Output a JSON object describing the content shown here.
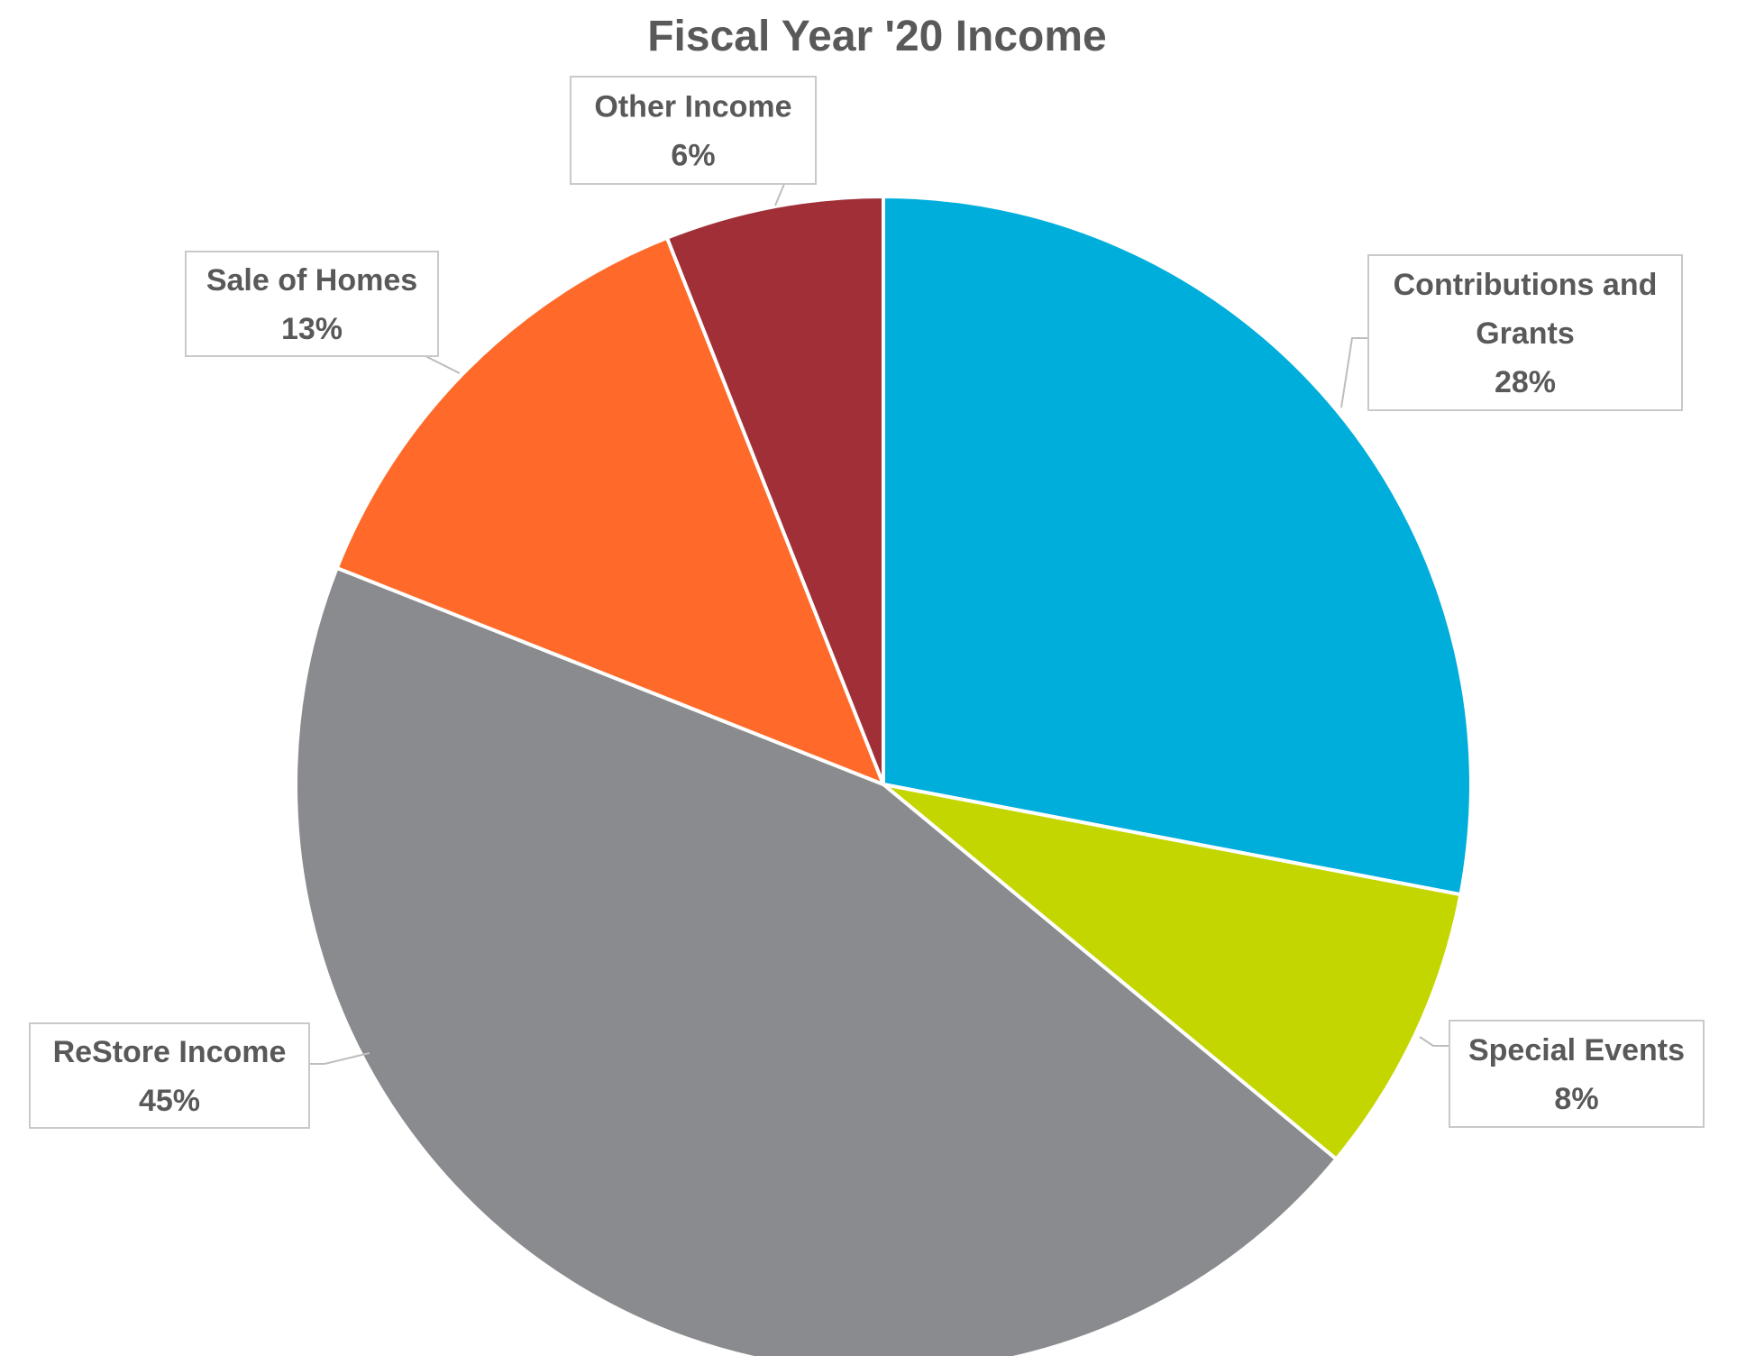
{
  "chart_data": {
    "type": "pie",
    "title": "Fiscal Year '20 Income",
    "start_angle_deg": 0,
    "direction": "clockwise",
    "slices": [
      {
        "label": "Contributions and Grants",
        "label_lines": [
          "Contributions and",
          "Grants"
        ],
        "value": 28,
        "value_label": "28%",
        "color": "#00AEDB"
      },
      {
        "label": "Special Events",
        "label_lines": [
          "Special Events"
        ],
        "value": 8,
        "value_label": "8%",
        "color": "#C4D600"
      },
      {
        "label": "ReStore Income",
        "label_lines": [
          "ReStore Income"
        ],
        "value": 45,
        "value_label": "45%",
        "color": "#898B8E"
      },
      {
        "label": "Sale of Homes",
        "label_lines": [
          "Sale of Homes"
        ],
        "value": 13,
        "value_label": "13%",
        "color": "#FF6A2B"
      },
      {
        "label": "Other Income",
        "label_lines": [
          "Other Income"
        ],
        "value": 6,
        "value_label": "6%",
        "color": "#A02F37"
      }
    ]
  }
}
